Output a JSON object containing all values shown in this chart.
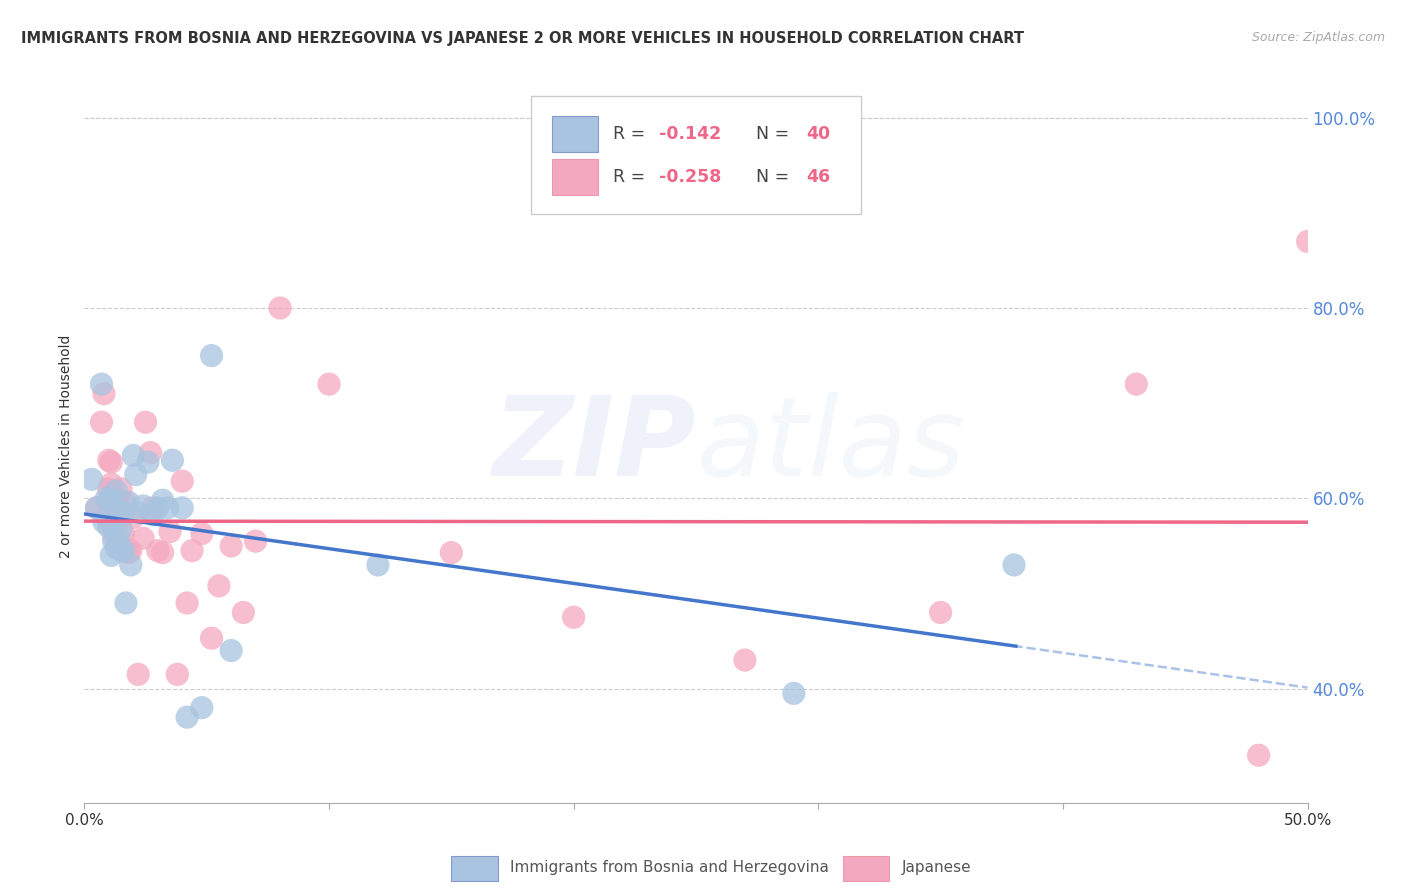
{
  "title": "IMMIGRANTS FROM BOSNIA AND HERZEGOVINA VS JAPANESE 2 OR MORE VEHICLES IN HOUSEHOLD CORRELATION CHART",
  "source": "Source: ZipAtlas.com",
  "ylabel": "2 or more Vehicles in Household",
  "legend_label1": "Immigrants from Bosnia and Herzegovina",
  "legend_label2": "Japanese",
  "R1": -0.142,
  "N1": 40,
  "R2": -0.258,
  "N2": 46,
  "color1": "#a8c4e0",
  "color2": "#f4a8c0",
  "line_color1": "#4477cc",
  "line_color2": "#ee6688",
  "xmin": 0.0,
  "xmax": 0.5,
  "ymin": 0.28,
  "ymax": 1.03,
  "right_yticks": [
    1.0,
    0.8,
    0.6,
    0.4
  ],
  "right_ytick_labels": [
    "100.0%",
    "80.0%",
    "60.0%",
    "40.0%"
  ],
  "bottom_xticks": [
    0.0,
    0.1,
    0.2,
    0.3,
    0.4,
    0.5
  ],
  "bottom_xtick_labels": [
    "0.0%",
    "",
    "",
    "",
    "",
    "50.0%"
  ],
  "blue_dots_x": [
    0.003,
    0.005,
    0.007,
    0.008,
    0.009,
    0.01,
    0.01,
    0.011,
    0.011,
    0.012,
    0.012,
    0.013,
    0.013,
    0.014,
    0.014,
    0.015,
    0.015,
    0.016,
    0.016,
    0.017,
    0.018,
    0.019,
    0.02,
    0.021,
    0.022,
    0.024,
    0.026,
    0.028,
    0.03,
    0.032,
    0.034,
    0.036,
    0.04,
    0.042,
    0.048,
    0.052,
    0.06,
    0.12,
    0.29,
    0.38
  ],
  "blue_dots_y": [
    0.62,
    0.59,
    0.72,
    0.575,
    0.6,
    0.57,
    0.598,
    0.54,
    0.6,
    0.555,
    0.572,
    0.548,
    0.608,
    0.558,
    0.585,
    0.545,
    0.568,
    0.585,
    0.545,
    0.49,
    0.596,
    0.53,
    0.645,
    0.625,
    0.585,
    0.592,
    0.638,
    0.583,
    0.59,
    0.598,
    0.59,
    0.64,
    0.59,
    0.37,
    0.38,
    0.75,
    0.44,
    0.53,
    0.395,
    0.53
  ],
  "pink_dots_x": [
    0.005,
    0.007,
    0.008,
    0.009,
    0.01,
    0.01,
    0.011,
    0.011,
    0.012,
    0.012,
    0.013,
    0.013,
    0.014,
    0.015,
    0.016,
    0.017,
    0.018,
    0.019,
    0.02,
    0.022,
    0.024,
    0.025,
    0.027,
    0.028,
    0.03,
    0.032,
    0.035,
    0.038,
    0.04,
    0.042,
    0.044,
    0.048,
    0.052,
    0.055,
    0.06,
    0.065,
    0.07,
    0.08,
    0.1,
    0.15,
    0.2,
    0.27,
    0.35,
    0.43,
    0.48,
    0.5
  ],
  "pink_dots_y": [
    0.59,
    0.68,
    0.71,
    0.58,
    0.64,
    0.61,
    0.615,
    0.638,
    0.56,
    0.6,
    0.598,
    0.565,
    0.578,
    0.61,
    0.563,
    0.595,
    0.543,
    0.545,
    0.58,
    0.415,
    0.558,
    0.68,
    0.648,
    0.59,
    0.545,
    0.543,
    0.565,
    0.415,
    0.618,
    0.49,
    0.545,
    0.563,
    0.453,
    0.508,
    0.55,
    0.48,
    0.555,
    0.8,
    0.72,
    0.543,
    0.475,
    0.43,
    0.48,
    0.72,
    0.33,
    0.87
  ],
  "grid_color": "#cccccc",
  "background_color": "#ffffff",
  "title_fontsize": 10.5,
  "tick_fontsize": 11,
  "right_tick_color": "#5588dd",
  "watermark_zip_color": "#aabbee",
  "watermark_atlas_color": "#ccddee"
}
